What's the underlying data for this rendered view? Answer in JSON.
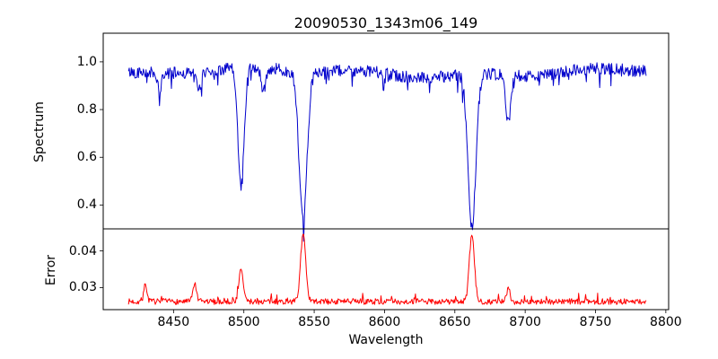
{
  "figure": {
    "background": "#ffffff",
    "axis_color": "#000000"
  },
  "chart_data": [
    {
      "type": "line",
      "panel": "spectrum",
      "title": "20090530_1343m06_149",
      "xlabel": "Wavelength",
      "ylabel": "Spectrum",
      "line_color": "#0000cc",
      "xlim": [
        8400,
        8802
      ],
      "ylim": [
        0.3,
        1.12
      ],
      "xticks": [
        8450,
        8500,
        8550,
        8600,
        8650,
        8700,
        8750,
        8800
      ],
      "yticks": [
        "0.4",
        "0.6",
        "0.8",
        "1.0"
      ],
      "x_range_data": [
        8418,
        8786
      ],
      "sample_step": 0.5,
      "continuum_level": 0.955,
      "noise_amplitude": 0.05,
      "grid": false,
      "legend": "none",
      "absorption_lines": [
        {
          "center": 8440.0,
          "depth": 0.08,
          "sigma": 1.5
        },
        {
          "center": 8468.0,
          "depth": 0.08,
          "sigma": 1.5
        },
        {
          "center": 8498.0,
          "depth": 0.5,
          "sigma": 2.2
        },
        {
          "center": 8514.0,
          "depth": 0.1,
          "sigma": 1.5
        },
        {
          "center": 8542.1,
          "depth": 0.63,
          "sigma": 2.8
        },
        {
          "center": 8662.1,
          "depth": 0.64,
          "sigma": 2.8
        },
        {
          "center": 8688.0,
          "depth": 0.2,
          "sigma": 1.8
        }
      ],
      "seed": 42
    },
    {
      "type": "line",
      "panel": "error",
      "ylabel": "Error",
      "line_color": "#ff0000",
      "ylim": [
        0.024,
        0.046
      ],
      "yticks": [
        "0.03",
        "0.04"
      ],
      "baseline_level": 0.0262,
      "noise_amplitude": 0.0016,
      "grid": false,
      "legend": "none",
      "error_peaks": [
        {
          "center": 8430.0,
          "height": 0.0045,
          "sigma": 1.2
        },
        {
          "center": 8465.0,
          "height": 0.005,
          "sigma": 1.2
        },
        {
          "center": 8498.0,
          "height": 0.0085,
          "sigma": 1.6
        },
        {
          "center": 8542.1,
          "height": 0.0185,
          "sigma": 1.8
        },
        {
          "center": 8662.1,
          "height": 0.018,
          "sigma": 1.8
        },
        {
          "center": 8688.0,
          "height": 0.0035,
          "sigma": 1.2
        }
      ],
      "seed": 7
    }
  ]
}
